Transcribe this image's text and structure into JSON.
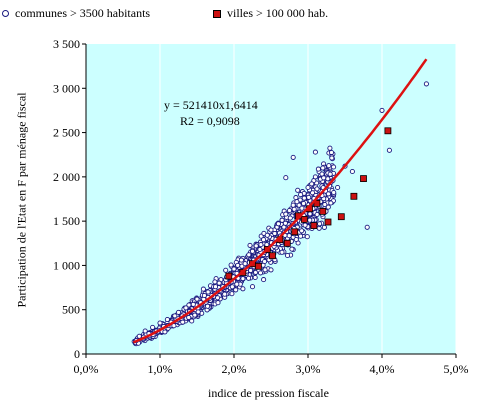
{
  "chart_data": {
    "type": "scatter",
    "xlabel": "indice de pression fiscale",
    "ylabel": "Participation de l'Etat en F par ménage fiscal",
    "xlim": [
      0,
      0.05
    ],
    "ylim": [
      0,
      3500
    ],
    "x_ticks": [
      "0,0%",
      "1,0%",
      "2,0%",
      "3,0%",
      "4,0%",
      "5,0%"
    ],
    "y_ticks": [
      "0",
      "500",
      "1 000",
      "1 500",
      "2 000",
      "2 500",
      "3 000",
      "3 500"
    ],
    "plot_background": "#ccffff",
    "grid": "vertical",
    "legend_position": "top",
    "equation": "y = 521410x1,6414",
    "r2": "R2 = 0,9098",
    "trendline": {
      "a": 521410,
      "b": 1.6414,
      "x_range": [
        0.0064,
        0.046
      ],
      "color": "#dd1111"
    },
    "series": [
      {
        "name": "communes > 3500 habitants",
        "marker": "circle",
        "color": "#1a1a80",
        "approx_count": 1200,
        "x_range": [
          0.0065,
          0.046
        ],
        "points": [
          [
            0.0068,
            150
          ],
          [
            0.0072,
            200
          ],
          [
            0.0078,
            190
          ],
          [
            0.008,
            260
          ],
          [
            0.0085,
            230
          ],
          [
            0.009,
            300
          ],
          [
            0.0095,
            260
          ],
          [
            0.01,
            350
          ],
          [
            0.0105,
            310
          ],
          [
            0.011,
            390
          ],
          [
            0.0115,
            360
          ],
          [
            0.012,
            430
          ],
          [
            0.0125,
            470
          ],
          [
            0.013,
            430
          ],
          [
            0.0135,
            520
          ],
          [
            0.014,
            480
          ],
          [
            0.0145,
            560
          ],
          [
            0.015,
            620
          ],
          [
            0.0155,
            580
          ],
          [
            0.016,
            660
          ],
          [
            0.0165,
            700
          ],
          [
            0.017,
            660
          ],
          [
            0.0175,
            760
          ],
          [
            0.018,
            800
          ],
          [
            0.0185,
            760
          ],
          [
            0.019,
            870
          ],
          [
            0.0195,
            900
          ],
          [
            0.02,
            960
          ],
          [
            0.0205,
            1000
          ],
          [
            0.021,
            1060
          ],
          [
            0.0215,
            1020
          ],
          [
            0.022,
            1120
          ],
          [
            0.0225,
            1160
          ],
          [
            0.023,
            1220
          ],
          [
            0.0235,
            1180
          ],
          [
            0.024,
            1290
          ],
          [
            0.0245,
            1340
          ],
          [
            0.025,
            1400
          ],
          [
            0.0255,
            1360
          ],
          [
            0.026,
            1470
          ],
          [
            0.0265,
            1510
          ],
          [
            0.027,
            1580
          ],
          [
            0.0275,
            1620
          ],
          [
            0.028,
            1680
          ],
          [
            0.0285,
            1720
          ],
          [
            0.029,
            1800
          ],
          [
            0.0295,
            1760
          ],
          [
            0.03,
            1880
          ],
          [
            0.0305,
            1920
          ],
          [
            0.031,
            2000
          ],
          [
            0.032,
            2100
          ],
          [
            0.033,
            2030
          ],
          [
            0.034,
            1880
          ],
          [
            0.035,
            2120
          ],
          [
            0.036,
            2060
          ],
          [
            0.028,
            2220
          ],
          [
            0.027,
            1990
          ],
          [
            0.031,
            2280
          ],
          [
            0.029,
            1330
          ],
          [
            0.025,
            950
          ],
          [
            0.0225,
            760
          ],
          [
            0.024,
            840
          ],
          [
            0.038,
            1430
          ],
          [
            0.04,
            2750
          ],
          [
            0.041,
            2300
          ],
          [
            0.046,
            3050
          ]
        ]
      },
      {
        "name": "villes > 100 000 hab.",
        "marker": "square",
        "color": "#cc1111",
        "points": [
          [
            0.0193,
            880
          ],
          [
            0.0212,
            920
          ],
          [
            0.0225,
            1020
          ],
          [
            0.0233,
            990
          ],
          [
            0.0245,
            1180
          ],
          [
            0.0252,
            1110
          ],
          [
            0.0262,
            1290
          ],
          [
            0.0272,
            1250
          ],
          [
            0.0282,
            1380
          ],
          [
            0.0287,
            1560
          ],
          [
            0.0295,
            1520
          ],
          [
            0.0302,
            1640
          ],
          [
            0.0308,
            1450
          ],
          [
            0.0312,
            1700
          ],
          [
            0.032,
            1610
          ],
          [
            0.0327,
            1490
          ],
          [
            0.0345,
            1550
          ],
          [
            0.0362,
            1780
          ],
          [
            0.0375,
            1980
          ],
          [
            0.0408,
            2520
          ]
        ]
      }
    ]
  }
}
